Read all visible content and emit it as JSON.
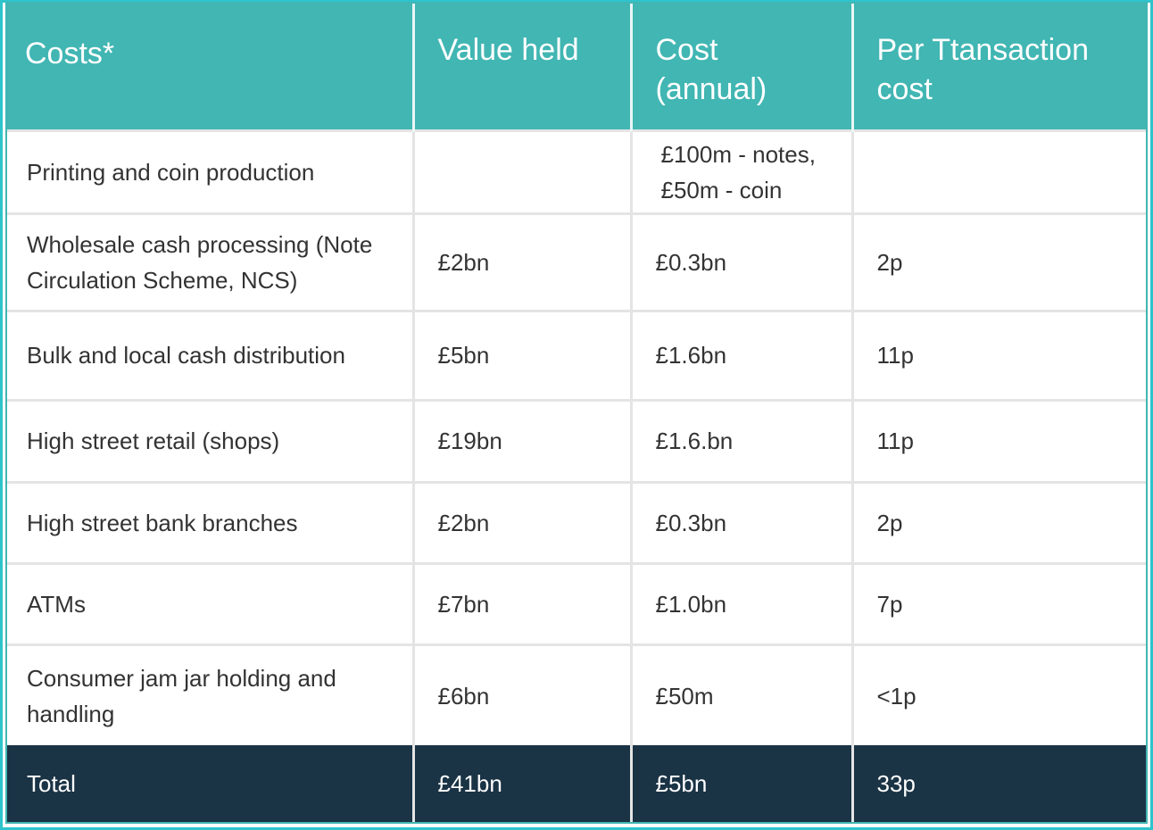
{
  "colors": {
    "header_bg": "#41b6b3",
    "total_bg": "#1a3345",
    "frame": "#2ec4cc"
  },
  "headers": [
    "Costs*",
    "Value held",
    "Cost (annual)",
    "Per Ttansaction cost"
  ],
  "rows": [
    [
      "Printing and coin production",
      "",
      "£100m - notes, £50m - coin",
      ""
    ],
    [
      "Wholesale cash processing (Note Circulation Scheme, NCS)",
      "£2bn",
      "£0.3bn",
      "2p"
    ],
    [
      "Bulk and local cash distribution",
      "£5bn",
      "£1.6bn",
      "11p"
    ],
    [
      "High street retail (shops)",
      "£19bn",
      "£1.6.bn",
      "11p"
    ],
    [
      "High street bank branches",
      "£2bn",
      "£0.3bn",
      "2p"
    ],
    [
      "ATMs",
      "£7bn",
      "£1.0bn",
      "7p"
    ],
    [
      "Consumer jam jar holding and handling",
      "£6bn",
      "£50m",
      "<1p"
    ]
  ],
  "total": [
    "Total",
    "£41bn",
    "£5bn",
    "33p"
  ]
}
